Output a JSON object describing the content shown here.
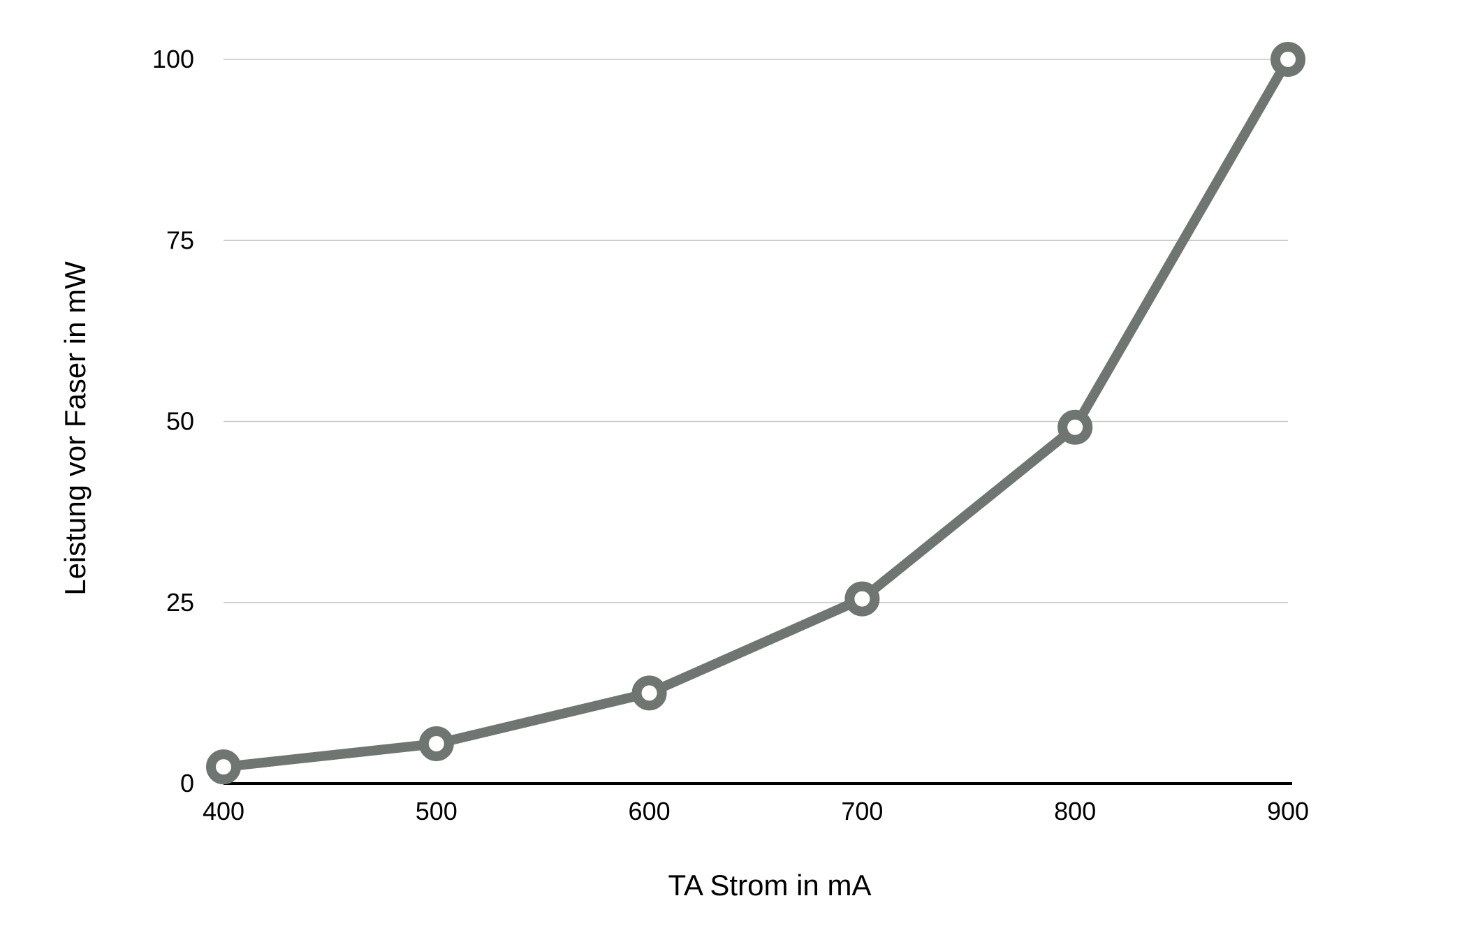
{
  "chart_data": {
    "type": "line",
    "title": "",
    "xlabel": "TA Strom in mA",
    "ylabel": "Leistung vor Faser in mW",
    "x": [
      400,
      500,
      600,
      700,
      800,
      900
    ],
    "series": [
      {
        "values": [
          2.3,
          5.5,
          12.5,
          25.5,
          49.2,
          100
        ]
      }
    ],
    "x_ticks": [
      "400",
      "500",
      "600",
      "700",
      "800",
      "900"
    ],
    "y_ticks": [
      "0",
      "25",
      "50",
      "75",
      "100"
    ],
    "xlim": [
      400,
      900
    ],
    "ylim": [
      0,
      100
    ],
    "grid": "horizontal",
    "legend": "none",
    "colors": {
      "line": "#6f7671",
      "marker_fill": "#ffffff",
      "grid": "#c8c8c8",
      "axis": "#000000"
    }
  }
}
